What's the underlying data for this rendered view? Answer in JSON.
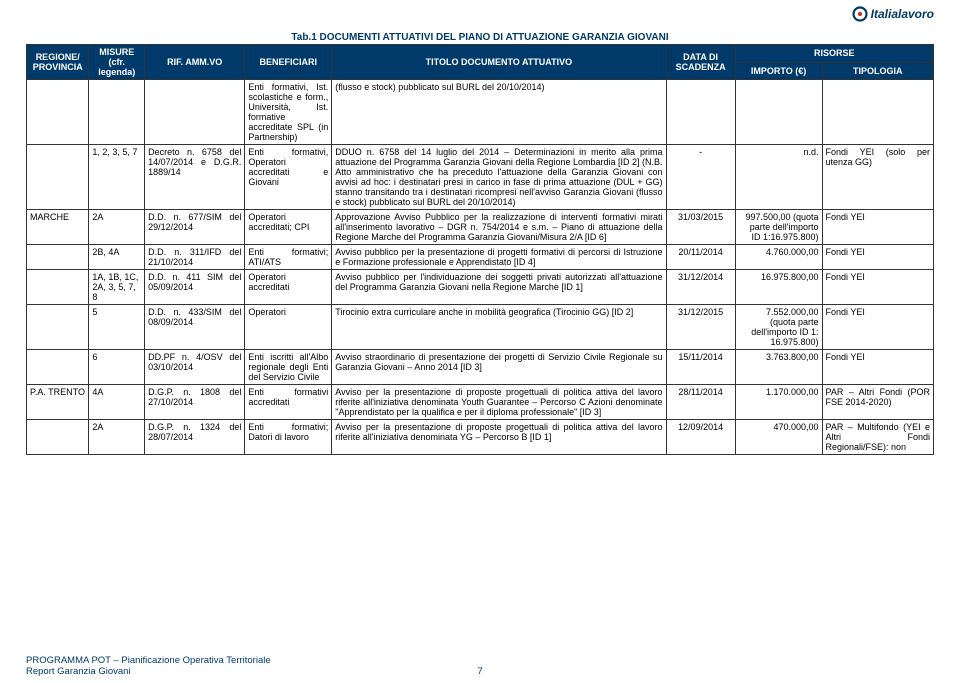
{
  "logo_text": "Italialavoro",
  "caption": "Tab.1 DOCUMENTI ATTUATIVI DEL PIANO DI ATTUAZIONE GARANZIA GIOVANI",
  "header": {
    "regione": "REGIONE/ PROVINCIA",
    "misure": "MISURE (cfr. legenda)",
    "rif": "RIF. AMM.VO",
    "ben": "BENEFICIARI",
    "titolo": "TITOLO DOCUMENTO ATTUATIVO",
    "data": "DATA DI SCADENZA",
    "risorse": "RISORSE",
    "importo": "IMPORTO (€)",
    "tipologia": "TIPOLOGIA"
  },
  "rows": [
    {
      "reg": "",
      "mis": "",
      "rif": "",
      "ben": "Enti formativi, Ist. scolastiche e form., Università, Ist. formative accreditate SPL (in Partnership)",
      "tit": "(flusso e stock) pubblicato sul BURL del 20/10/2014)",
      "data": "",
      "imp": "",
      "tipo": ""
    },
    {
      "reg": "",
      "mis": "1, 2, 3, 5, 7",
      "rif": "Decreto n. 6758 del 14/07/2014 e D.G.R. 1889/14",
      "ben": "Enti formativi, Operatori accreditati e Giovani",
      "tit": "DDUO n. 6758 del 14 luglio del 2014 – Determinazioni in merito alla prima attuazione del Programma Garanzia Giovani della Regione Lombardia [ID 2]\n(N.B. Atto amministrativo che ha preceduto l'attuazione della Garanzia Giovani con avvisi ad hoc: i destinatari presi in carico in fase di prima attuazione (DUL + GG) stanno transitando tra i destinatari ricompresi nell'avviso Garanzia Giovani (flusso e stock) pubblicato sul BURL del 20/10/2014)",
      "data": "-",
      "imp": "n.d.",
      "tipo": "Fondi YEI (solo per utenza GG)"
    },
    {
      "reg": "MARCHE",
      "mis": "2A",
      "rif": "D.D. n. 677/SIM del 29/12/2014",
      "ben": "Operatori accreditati; CPI",
      "tit": "Approvazione Avviso Pubblico per la realizzazione di interventi formativi mirati all'inserimento lavorativo – DGR n. 754/2014 e s.m. – Piano di attuazione della Regione Marche del Programma Garanzia Giovani/Misura 2/A [ID 6]",
      "data": "31/03/2015",
      "imp": "997.500,00 (quota parte dell'importo ID 1:16.975.800)",
      "tipo": "Fondi YEI"
    },
    {
      "reg": "",
      "mis": "2B, 4A",
      "rif": "D.D. n. 311/IFD del 21/10/2014",
      "ben": "Enti formativi; ATI/ATS",
      "tit": "Avviso pubblico per la presentazione di progetti formativi di percorsi di Istruzione e Formazione professionale e Apprendistato [ID 4]",
      "data": "20/11/2014",
      "imp": "4.760.000,00",
      "tipo": "Fondi YEI"
    },
    {
      "reg": "",
      "mis": "1A, 1B, 1C, 2A, 3, 5, 7, 8",
      "rif": "D.D. n. 411 SIM del 05/09/2014",
      "ben": "Operatori accreditati",
      "tit": "Avviso pubblico per l'individuazione dei soggetti privati autorizzati all'attuazione del Programma Garanzia Giovani nella Regione Marche [ID 1]",
      "data": "31/12/2014",
      "imp": "16.975.800,00",
      "tipo": "Fondi YEI"
    },
    {
      "reg": "",
      "mis": "5",
      "rif": "D.D. n. 433/SIM del 08/09/2014",
      "ben": "Operatori",
      "tit": "Tirocinio extra curriculare anche in mobilità geografica (Tirocinio GG) [ID 2]",
      "data": "31/12/2015",
      "imp": "7.552.000,00 (quota parte dell'importo ID 1: 16.975.800)",
      "tipo": "Fondi YEI"
    },
    {
      "reg": "",
      "mis": "6",
      "rif": "DD.PF n. 4/OSV del 03/10/2014",
      "ben": "Enti iscritti all'Albo regionale degli Enti del Servizio Civile",
      "tit": "Avviso straordinario di presentazione dei progetti di Servizio Civile Regionale su Garanzia Giovani – Anno 2014 [ID 3]",
      "data": "15/11/2014",
      "imp": "3.763.800,00",
      "tipo": "Fondi YEI"
    },
    {
      "reg": "P.A. TRENTO",
      "mis": "4A",
      "rif": "D.G.P. n. 1808 del 27/10/2014",
      "ben": "Enti formativi accreditati",
      "tit": "Avviso per la presentazione di proposte progettuali di politica attiva del lavoro riferite all'iniziativa denominata Youth Guarantee – Percorso C Azioni denominate \"Apprendistato per la qualifica e per il diploma professionale\" [ID 3]",
      "data": "28/11/2014",
      "imp": "1.170.000,00",
      "tipo": "PAR – Altri Fondi (POR FSE 2014-2020)"
    },
    {
      "reg": "",
      "mis": "2A",
      "rif": "D.G.P. n. 1324 del 28/07/2014",
      "ben": "Enti formativi; Datori di lavoro",
      "tit": "Avviso per la presentazione di proposte progettuali di politica attiva del lavoro riferite all'iniziativa denominata YG – Percorso B [ID 1]",
      "data": "12/09/2014",
      "imp": "470.000,00",
      "tipo": "PAR – Multifondo (YEI e Altri Fondi Regionali/FSE): non"
    }
  ],
  "footer": {
    "line1": "PROGRAMMA POT – Pianificazione Operativa Territoriale",
    "line2": "Report Garanzia Giovani",
    "page": "7"
  },
  "colors": {
    "brand": "#003a6a",
    "border": "#333333",
    "bg": "#ffffff"
  }
}
